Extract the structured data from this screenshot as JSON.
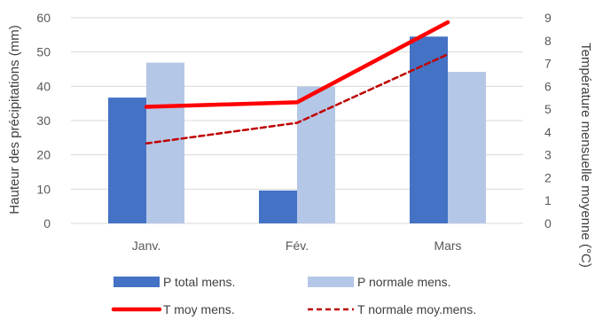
{
  "chart_data": {
    "type": "bar",
    "categories": [
      "Janv.",
      "Fév.",
      "Mars"
    ],
    "ylabel": "Hauteur des précipitations (mm)",
    "y2label": "Température mensuelle moyenne (°C)",
    "ylim": [
      0,
      60
    ],
    "y2lim": [
      0,
      9
    ],
    "yticks": [
      "0",
      "10",
      "20",
      "30",
      "40",
      "50",
      "60"
    ],
    "y2ticks": [
      "0",
      "1",
      "2",
      "3",
      "4",
      "5",
      "6",
      "7",
      "8",
      "9"
    ],
    "grid": true,
    "legend_position": "bottom",
    "bar_series": [
      {
        "name": "P total mens.",
        "values": [
          36.7,
          9.6,
          54.5
        ],
        "color": "#4472C4"
      },
      {
        "name": "P normale mens.",
        "values": [
          46.9,
          39.9,
          44.2
        ],
        "color": "#B4C7E7"
      }
    ],
    "line_series": [
      {
        "name": "T moy mens.",
        "values": [
          5.1,
          5.3,
          8.8
        ],
        "color": "#FF0000",
        "style": "solid",
        "axis": "right"
      },
      {
        "name": "T normale moy.mens.",
        "values": [
          3.5,
          4.4,
          7.4
        ],
        "color": "#C00000",
        "style": "dashed",
        "axis": "right"
      }
    ]
  }
}
